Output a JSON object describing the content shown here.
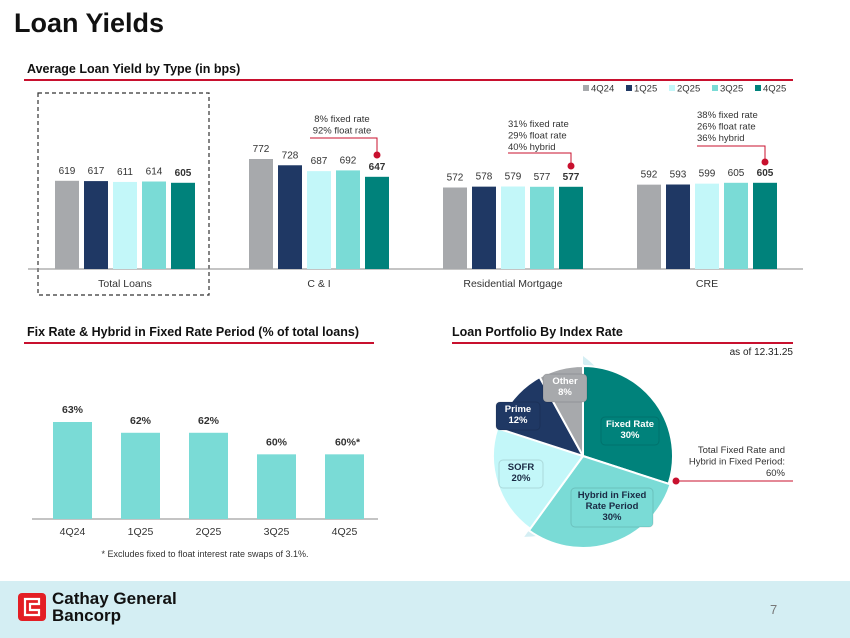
{
  "page": {
    "title": "Loan Yields",
    "page_number": "7",
    "company_line1": "Cathay General",
    "company_line2": "Bancorp",
    "colors": {
      "accent_red": "#c8102e",
      "footer_bg": "#d4eef3"
    }
  },
  "chart_data": [
    {
      "type": "bar",
      "title": "Average Loan Yield by Type (in bps)",
      "categories": [
        "Total Loans",
        "C & I",
        "Residential Mortgage",
        "CRE"
      ],
      "series": [
        {
          "name": "4Q24",
          "color": "#a7a9ac",
          "values": [
            619,
            772,
            572,
            592
          ]
        },
        {
          "name": "1Q25",
          "color": "#1f3864",
          "values": [
            617,
            728,
            578,
            593
          ]
        },
        {
          "name": "2Q25",
          "color": "#c3f7f9",
          "values": [
            611,
            687,
            579,
            599
          ]
        },
        {
          "name": "3Q25",
          "color": "#7adbd6",
          "values": [
            614,
            692,
            577,
            605
          ]
        },
        {
          "name": "4Q25",
          "color": "#00827b",
          "values": [
            605,
            647,
            577,
            605
          ]
        }
      ],
      "ylim": [
        0,
        800
      ],
      "legend": "top-right",
      "highlighted_category": "Total Loans",
      "annotations": [
        {
          "category": "C & I",
          "lines": [
            "8% fixed rate",
            "92% float rate"
          ]
        },
        {
          "category": "Residential Mortgage",
          "lines": [
            "31% fixed rate",
            "29% float rate",
            "40% hybrid"
          ]
        },
        {
          "category": "CRE",
          "lines": [
            "38% fixed rate",
            "26% float rate",
            "36% hybrid"
          ]
        }
      ]
    },
    {
      "type": "bar",
      "title": "Fix Rate & Hybrid in Fixed Rate Period (% of total loans)",
      "categories": [
        "4Q24",
        "1Q25",
        "2Q25",
        "3Q25",
        "4Q25"
      ],
      "values": [
        63,
        62,
        62,
        60,
        60
      ],
      "labels": [
        "63%",
        "62%",
        "62%",
        "60%",
        "60%*"
      ],
      "color": "#7adbd6",
      "ylim": [
        54,
        66
      ],
      "footnote": "* Excludes fixed to float interest rate swaps of 3.1%."
    },
    {
      "type": "pie",
      "title": "Loan Portfolio By Index Rate",
      "subtitle": "as of 12.31.25",
      "slices": [
        {
          "label": "Fixed Rate",
          "value": 30,
          "display": "30%",
          "color": "#00827b",
          "text_color": "#ffffff"
        },
        {
          "label": "Hybrid in Fixed Rate Period",
          "label_lines": [
            "Hybrid in Fixed",
            "Rate Period"
          ],
          "value": 30,
          "display": "30%",
          "color": "#7adbd6",
          "text_color": "#1a2a44"
        },
        {
          "label": "SOFR",
          "value": 20,
          "display": "20%",
          "color": "#c3f7f9",
          "text_color": "#1a2a44"
        },
        {
          "label": "Prime",
          "value": 12,
          "display": "12%",
          "color": "#1f3864",
          "text_color": "#ffffff"
        },
        {
          "label": "Other",
          "value": 8,
          "display": "8%",
          "color": "#a7a9ac",
          "text_color": "#ffffff"
        }
      ],
      "callout": [
        "Total Fixed Rate and",
        "Hybrid in Fixed Period:",
        "60%"
      ]
    }
  ]
}
